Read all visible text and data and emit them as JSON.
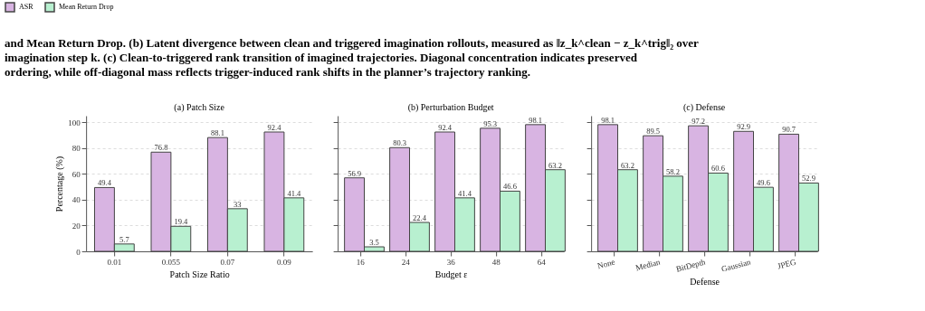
{
  "chart_data": [
    {
      "type": "other",
      "annotations": [
        "and Mean Return Drop. (b) Latent divergence between clean and triggered imagination rollouts, measured as ‖z_k^clean − z_k^trig‖₂ over",
        "imagination step k. (c) Clean-to-triggered rank transition of imagined trajectories. Diagonal concentration indicates preserved",
        "ordering, while off-diagonal mass reflects trigger-induced rank shifts in the planner’s trajectory ranking."
      ]
    },
    {
      "type": "bar",
      "title": "(a) Patch Size",
      "xlabel": "Patch Size Ratio",
      "ylabel": "Percentage (%)",
      "categories": [
        "0.01",
        "0.055",
        "0.07",
        "0.09"
      ],
      "series": [
        {
          "name": "ASR",
          "color": "#d8b4e2",
          "values": [
            49.4,
            76.8,
            88.1,
            92.4
          ]
        },
        {
          "name": "Mean Return Drop",
          "color": "#b8f0d0",
          "values": [
            5.7,
            19.4,
            33,
            41.4
          ]
        }
      ],
      "ylim": [
        0,
        105
      ],
      "yticks": [
        0,
        20,
        40,
        60,
        80,
        100
      ],
      "grid": "y",
      "legend": "top",
      "data_labels": true
    },
    {
      "type": "bar",
      "title": "(b) Perturbation Budget",
      "xlabel": "Budget ε",
      "categories": [
        "16",
        "24",
        "36",
        "48",
        "64"
      ],
      "series": [
        {
          "name": "ASR",
          "color": "#d8b4e2",
          "values": [
            56.9,
            80.3,
            92.4,
            95.3,
            98.1
          ]
        },
        {
          "name": "Mean Return Drop",
          "color": "#b8f0d0",
          "values": [
            3.5,
            22.4,
            41.4,
            46.6,
            63.2
          ]
        }
      ],
      "ylim": [
        0,
        105
      ],
      "yticks": [
        0,
        20,
        40,
        60,
        80,
        100
      ],
      "grid": "y",
      "legend": "top",
      "data_labels": true,
      "tick_labels": "x"
    },
    {
      "type": "bar",
      "title": "(c) Defense",
      "xlabel": "Defense",
      "categories": [
        "None",
        "Median",
        "BitDepth",
        "Gaussian",
        "JPEG"
      ],
      "series": [
        {
          "name": "ASR",
          "color": "#d8b4e2",
          "values": [
            98.1,
            89.5,
            97.2,
            92.9,
            90.7
          ]
        },
        {
          "name": "Mean Return Drop",
          "color": "#b8f0d0",
          "values": [
            63.2,
            58.2,
            60.6,
            49.6,
            52.9
          ]
        }
      ],
      "ylim": [
        0,
        105
      ],
      "yticks": [
        0,
        20,
        40,
        60,
        80,
        100
      ],
      "grid": "y",
      "legend": "top",
      "data_labels": true,
      "tick_labels": "x"
    }
  ]
}
